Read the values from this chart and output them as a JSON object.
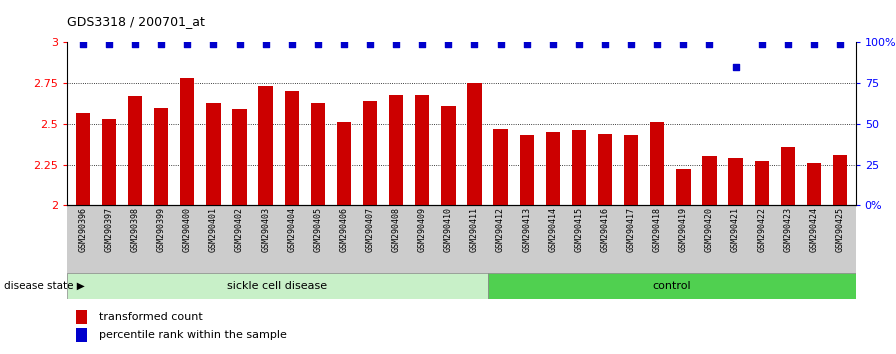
{
  "title": "GDS3318 / 200701_at",
  "samples": [
    "GSM290396",
    "GSM290397",
    "GSM290398",
    "GSM290399",
    "GSM290400",
    "GSM290401",
    "GSM290402",
    "GSM290403",
    "GSM290404",
    "GSM290405",
    "GSM290406",
    "GSM290407",
    "GSM290408",
    "GSM290409",
    "GSM290410",
    "GSM290411",
    "GSM290412",
    "GSM290413",
    "GSM290414",
    "GSM290415",
    "GSM290416",
    "GSM290417",
    "GSM290418",
    "GSM290419",
    "GSM290420",
    "GSM290421",
    "GSM290422",
    "GSM290423",
    "GSM290424",
    "GSM290425"
  ],
  "bar_values": [
    2.57,
    2.53,
    2.67,
    2.6,
    2.78,
    2.63,
    2.59,
    2.73,
    2.7,
    2.63,
    2.51,
    2.64,
    2.68,
    2.68,
    2.61,
    2.75,
    2.47,
    2.43,
    2.45,
    2.46,
    2.44,
    2.43,
    2.51,
    2.22,
    2.3,
    2.29,
    2.27,
    2.36,
    2.26,
    2.31
  ],
  "percentile_pct": [
    99,
    99,
    99,
    99,
    99,
    99,
    99,
    99,
    99,
    99,
    99,
    99,
    99,
    99,
    99,
    99,
    99,
    99,
    99,
    99,
    99,
    99,
    99,
    99,
    99,
    85,
    99,
    99,
    99,
    99
  ],
  "bar_color": "#cc0000",
  "percentile_color": "#0000cc",
  "ylim_left": [
    2.0,
    3.0
  ],
  "ylim_right": [
    0,
    100
  ],
  "yticks_left": [
    2.0,
    2.25,
    2.5,
    2.75,
    3.0
  ],
  "ytick_labels_left": [
    "2",
    "2.25",
    "2.5",
    "2.75",
    "3"
  ],
  "yticks_right": [
    0,
    25,
    50,
    75,
    100
  ],
  "ytick_labels_right": [
    "0%",
    "25",
    "50",
    "75",
    "100%"
  ],
  "sickle_count": 16,
  "control_count": 14,
  "group_label_sickle": "sickle cell disease",
  "group_label_control": "control",
  "disease_state_label": "disease state",
  "legend_bar_label": "transformed count",
  "legend_pct_label": "percentile rank within the sample",
  "sickle_color": "#c8f0c8",
  "control_color": "#50d050",
  "tick_bg_color": "#cccccc"
}
